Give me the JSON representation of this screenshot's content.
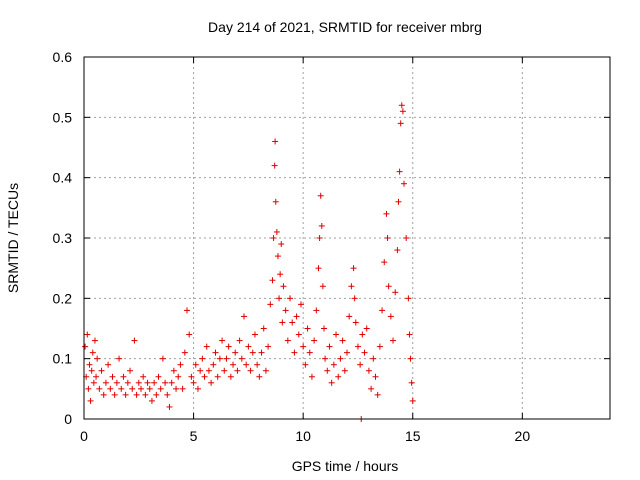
{
  "chart_data": {
    "type": "scatter",
    "title": "Day 214 of 2021, SRMTID for receiver mbrg",
    "xlabel": "GPS time / hours",
    "ylabel": "SRMTID / TECUs",
    "xlim": [
      0,
      24
    ],
    "ylim": [
      0,
      0.6
    ],
    "xticks": [
      0,
      5,
      10,
      15,
      20
    ],
    "xtick_labels": [
      "0",
      "5",
      "10",
      "15",
      "20"
    ],
    "yticks": [
      0,
      0.1,
      0.2,
      0.3,
      0.4,
      0.5,
      0.6
    ],
    "ytick_labels": [
      "0",
      "0.1",
      "0.2",
      "0.3",
      "0.4",
      "0.5",
      "0.6"
    ],
    "grid": true,
    "marker": "plus",
    "series": [
      {
        "name": "SRMTID",
        "color": "#e00000",
        "points": [
          [
            0.05,
            0.12
          ],
          [
            0.1,
            0.07
          ],
          [
            0.15,
            0.14
          ],
          [
            0.2,
            0.05
          ],
          [
            0.25,
            0.09
          ],
          [
            0.3,
            0.03
          ],
          [
            0.35,
            0.08
          ],
          [
            0.4,
            0.11
          ],
          [
            0.45,
            0.06
          ],
          [
            0.5,
            0.13
          ],
          [
            0.55,
            0.07
          ],
          [
            0.6,
            0.1
          ],
          [
            0.7,
            0.05
          ],
          [
            0.8,
            0.08
          ],
          [
            0.9,
            0.04
          ],
          [
            1.0,
            0.06
          ],
          [
            1.1,
            0.09
          ],
          [
            1.2,
            0.05
          ],
          [
            1.3,
            0.07
          ],
          [
            1.4,
            0.04
          ],
          [
            1.5,
            0.06
          ],
          [
            1.6,
            0.1
          ],
          [
            1.7,
            0.05
          ],
          [
            1.8,
            0.07
          ],
          [
            1.9,
            0.04
          ],
          [
            2.0,
            0.06
          ],
          [
            2.1,
            0.08
          ],
          [
            2.2,
            0.05
          ],
          [
            2.3,
            0.13
          ],
          [
            2.4,
            0.04
          ],
          [
            2.5,
            0.06
          ],
          [
            2.6,
            0.05
          ],
          [
            2.7,
            0.07
          ],
          [
            2.8,
            0.04
          ],
          [
            2.9,
            0.06
          ],
          [
            3.0,
            0.05
          ],
          [
            3.1,
            0.03
          ],
          [
            3.2,
            0.06
          ],
          [
            3.3,
            0.04
          ],
          [
            3.4,
            0.07
          ],
          [
            3.5,
            0.05
          ],
          [
            3.6,
            0.1
          ],
          [
            3.7,
            0.06
          ],
          [
            3.8,
            0.04
          ],
          [
            3.9,
            0.02
          ],
          [
            4.0,
            0.06
          ],
          [
            4.1,
            0.08
          ],
          [
            4.2,
            0.05
          ],
          [
            4.3,
            0.07
          ],
          [
            4.4,
            0.09
          ],
          [
            4.5,
            0.05
          ],
          [
            4.6,
            0.11
          ],
          [
            4.7,
            0.18
          ],
          [
            4.8,
            0.14
          ],
          [
            4.9,
            0.07
          ],
          [
            5.0,
            0.06
          ],
          [
            5.1,
            0.09
          ],
          [
            5.2,
            0.05
          ],
          [
            5.3,
            0.08
          ],
          [
            5.4,
            0.1
          ],
          [
            5.5,
            0.07
          ],
          [
            5.6,
            0.12
          ],
          [
            5.7,
            0.08
          ],
          [
            5.8,
            0.06
          ],
          [
            5.9,
            0.09
          ],
          [
            6.0,
            0.11
          ],
          [
            6.1,
            0.07
          ],
          [
            6.2,
            0.1
          ],
          [
            6.3,
            0.13
          ],
          [
            6.4,
            0.08
          ],
          [
            6.5,
            0.1
          ],
          [
            6.6,
            0.12
          ],
          [
            6.7,
            0.07
          ],
          [
            6.8,
            0.09
          ],
          [
            6.9,
            0.11
          ],
          [
            7.0,
            0.08
          ],
          [
            7.1,
            0.13
          ],
          [
            7.2,
            0.1
          ],
          [
            7.3,
            0.17
          ],
          [
            7.4,
            0.09
          ],
          [
            7.5,
            0.12
          ],
          [
            7.6,
            0.08
          ],
          [
            7.7,
            0.11
          ],
          [
            7.8,
            0.14
          ],
          [
            7.9,
            0.09
          ],
          [
            8.0,
            0.07
          ],
          [
            8.1,
            0.11
          ],
          [
            8.2,
            0.15
          ],
          [
            8.3,
            0.08
          ],
          [
            8.4,
            0.12
          ],
          [
            8.5,
            0.19
          ],
          [
            8.6,
            0.23
          ],
          [
            8.65,
            0.3
          ],
          [
            8.7,
            0.42
          ],
          [
            8.72,
            0.46
          ],
          [
            8.75,
            0.36
          ],
          [
            8.8,
            0.31
          ],
          [
            8.85,
            0.27
          ],
          [
            8.9,
            0.2
          ],
          [
            8.95,
            0.24
          ],
          [
            9.0,
            0.29
          ],
          [
            9.05,
            0.16
          ],
          [
            9.1,
            0.22
          ],
          [
            9.2,
            0.18
          ],
          [
            9.3,
            0.13
          ],
          [
            9.4,
            0.2
          ],
          [
            9.5,
            0.16
          ],
          [
            9.6,
            0.11
          ],
          [
            9.7,
            0.17
          ],
          [
            9.8,
            0.14
          ],
          [
            9.9,
            0.19
          ],
          [
            10.0,
            0.12
          ],
          [
            10.1,
            0.09
          ],
          [
            10.2,
            0.15
          ],
          [
            10.3,
            0.11
          ],
          [
            10.4,
            0.07
          ],
          [
            10.5,
            0.13
          ],
          [
            10.6,
            0.18
          ],
          [
            10.7,
            0.25
          ],
          [
            10.75,
            0.3
          ],
          [
            10.8,
            0.37
          ],
          [
            10.85,
            0.32
          ],
          [
            10.9,
            0.22
          ],
          [
            10.95,
            0.15
          ],
          [
            11.0,
            0.1
          ],
          [
            11.1,
            0.08
          ],
          [
            11.2,
            0.12
          ],
          [
            11.3,
            0.06
          ],
          [
            11.4,
            0.09
          ],
          [
            11.5,
            0.14
          ],
          [
            11.6,
            0.07
          ],
          [
            11.7,
            0.1
          ],
          [
            11.8,
            0.13
          ],
          [
            11.9,
            0.08
          ],
          [
            12.0,
            0.11
          ],
          [
            12.1,
            0.17
          ],
          [
            12.2,
            0.22
          ],
          [
            12.3,
            0.25
          ],
          [
            12.35,
            0.2
          ],
          [
            12.4,
            0.16
          ],
          [
            12.5,
            0.12
          ],
          [
            12.6,
            0.09
          ],
          [
            12.65,
            0.0
          ],
          [
            12.7,
            0.14
          ],
          [
            12.8,
            0.11
          ],
          [
            12.9,
            0.15
          ],
          [
            13.0,
            0.08
          ],
          [
            13.1,
            0.05
          ],
          [
            13.2,
            0.1
          ],
          [
            13.3,
            0.07
          ],
          [
            13.4,
            0.04
          ],
          [
            13.5,
            0.12
          ],
          [
            13.6,
            0.18
          ],
          [
            13.7,
            0.26
          ],
          [
            13.8,
            0.34
          ],
          [
            13.85,
            0.3
          ],
          [
            13.9,
            0.22
          ],
          [
            14.0,
            0.17
          ],
          [
            14.1,
            0.13
          ],
          [
            14.2,
            0.21
          ],
          [
            14.3,
            0.28
          ],
          [
            14.35,
            0.36
          ],
          [
            14.4,
            0.41
          ],
          [
            14.45,
            0.49
          ],
          [
            14.5,
            0.52
          ],
          [
            14.55,
            0.51
          ],
          [
            14.6,
            0.39
          ],
          [
            14.7,
            0.3
          ],
          [
            14.8,
            0.2
          ],
          [
            14.85,
            0.14
          ],
          [
            14.9,
            0.1
          ],
          [
            14.95,
            0.06
          ],
          [
            15.0,
            0.03
          ]
        ]
      }
    ]
  }
}
